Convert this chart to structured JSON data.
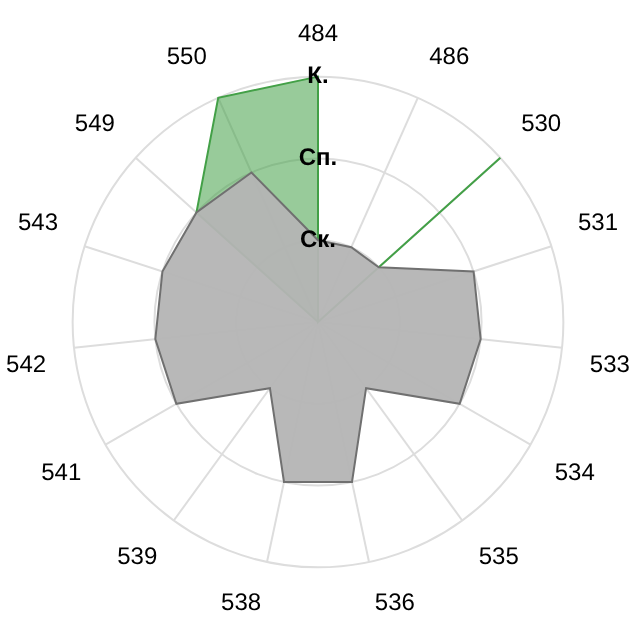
{
  "chart_data": {
    "type": "radar",
    "categories": [
      "484",
      "486",
      "530",
      "531",
      "533",
      "534",
      "535",
      "536",
      "538",
      "539",
      "541",
      "542",
      "543",
      "549",
      "550"
    ],
    "series": [
      {
        "color": "#707070",
        "values": [
          1,
          1,
          1,
          2,
          2,
          2,
          1,
          2,
          2,
          1,
          2,
          2,
          2,
          2,
          2
        ]
      },
      {
        "color": "#43a047",
        "values": [
          3,
          0,
          3,
          0,
          0,
          0,
          0,
          0,
          0,
          0,
          0,
          0,
          0,
          2,
          3
        ]
      }
    ],
    "ylim": [
      0,
      3
    ],
    "yticks": [
      {
        "value": 1,
        "label": "Ск."
      },
      {
        "value": 2,
        "label": "Сп."
      },
      {
        "value": 3,
        "label": "К."
      }
    ],
    "grid": true,
    "legend": false
  }
}
